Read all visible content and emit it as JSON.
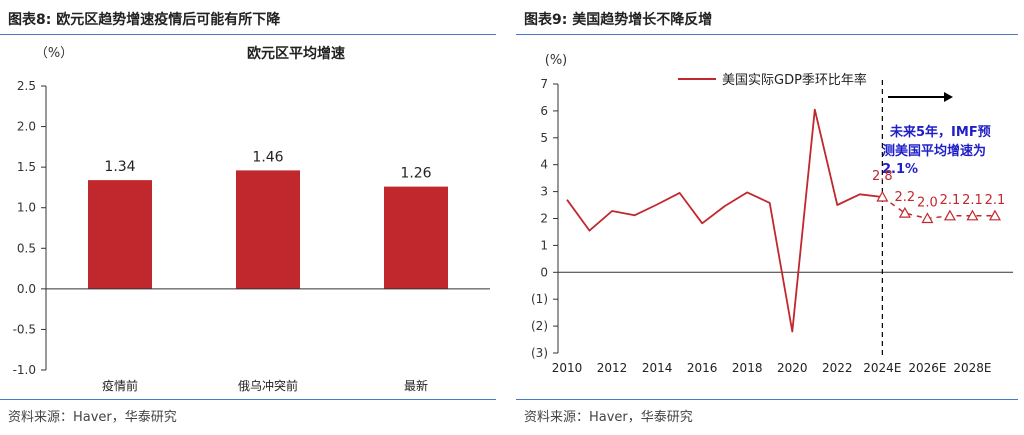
{
  "left": {
    "figure_title": "图表8:  欧元区趋势增速疫情后可能有所下降",
    "source": "资料来源：Haver，华泰研究"
  },
  "right": {
    "figure_title": "图表9:  美国趋势增长不降反增",
    "source": "资料来源：Haver，华泰研究"
  },
  "colors": {
    "series": "#c0282d",
    "accent_text": "#1f1fc8",
    "rule": "#4a78c8",
    "axis": "#333333"
  },
  "chart_data": [
    {
      "type": "bar",
      "title": "欧元区平均增速",
      "ylabel": "（%）",
      "categories": [
        "疫情前",
        "俄乌冲突前",
        "最新"
      ],
      "values": [
        1.34,
        1.46,
        1.26
      ],
      "value_labels": [
        "1.34",
        "1.46",
        "1.26"
      ],
      "ylim": [
        -1.0,
        2.5
      ],
      "yticks": [
        -1.0,
        -0.5,
        0.0,
        0.5,
        1.0,
        1.5,
        2.0,
        2.5
      ],
      "ytick_labels": [
        "-1.0",
        "-0.5",
        "0.0",
        "0.5",
        "1.0",
        "1.5",
        "2.0",
        "2.5"
      ],
      "grid": false,
      "color": "#c0282d"
    },
    {
      "type": "line",
      "ylabel": "(%)",
      "x": [
        2010,
        2011,
        2012,
        2013,
        2014,
        2015,
        2016,
        2017,
        2018,
        2019,
        2020,
        2021,
        2022,
        2023,
        2024
      ],
      "series": [
        {
          "name": "美国实际GDP季环比年率",
          "values": [
            2.7,
            1.55,
            2.28,
            2.12,
            2.52,
            2.95,
            1.82,
            2.46,
            2.97,
            2.58,
            -2.2,
            6.05,
            2.5,
            2.9,
            2.8
          ],
          "style": "solid"
        }
      ],
      "forecast": {
        "x": [
          2024,
          2025,
          2026,
          2027,
          2028,
          2029
        ],
        "values": [
          2.8,
          2.2,
          2.0,
          2.1,
          2.1,
          2.1
        ],
        "labels": [
          "2.8",
          "2.2",
          "2.0",
          "2.1",
          "2.1",
          "2.1"
        ],
        "style": "dashed-triangle"
      },
      "xlim": [
        2009.6,
        2029.8
      ],
      "ylim": [
        -3,
        7
      ],
      "yticks": [
        -3,
        -2,
        -1,
        0,
        1,
        2,
        3,
        4,
        5,
        6,
        7
      ],
      "ytick_labels": [
        "(3)",
        "(2)",
        "(1)",
        "0",
        "1",
        "2",
        "3",
        "4",
        "5",
        "6",
        "7"
      ],
      "xticks": [
        2010,
        2012,
        2014,
        2016,
        2018,
        2020,
        2022,
        2024,
        2026,
        2028
      ],
      "xtick_labels": [
        "2010",
        "2012",
        "2014",
        "2016",
        "2018",
        "2020",
        "2022",
        "2024E",
        "2026E",
        "2028E"
      ],
      "divider_x": 2024,
      "annotation": {
        "line1": "未来5年，IMF预",
        "line2": "测美国平均增速为",
        "line3": "2.1%"
      },
      "grid": false,
      "legend": "top"
    }
  ]
}
